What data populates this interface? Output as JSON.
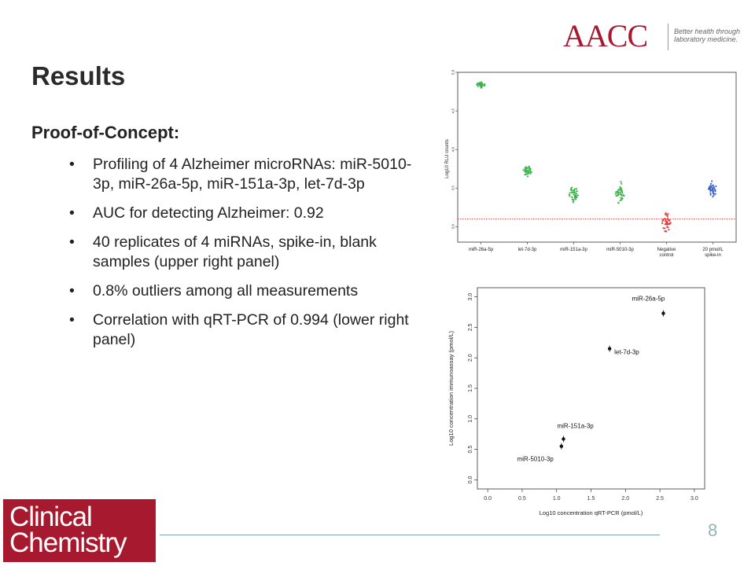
{
  "header": {
    "logo_text": "AACC",
    "tagline_line1": "Better health through",
    "tagline_line2": "laboratory medicine."
  },
  "slide": {
    "title": "Results",
    "subheading": "Proof-of-Concept:",
    "bullet_symbol": "•",
    "bullets": [
      "Profiling of 4 Alzheimer microRNAs: miR-5010-3p, miR-26a-5p, miR-151a-3p, let-7d-3p",
      "AUC for detecting Alzheimer: 0.92",
      "40 replicates of 4 miRNAs, spike-in, blank samples (upper right panel)",
      "0.8% outliers among all measurements",
      "Correlation with qRT-PCR of 0.994 (lower right panel)"
    ]
  },
  "footer": {
    "logo_line1": "Clinical",
    "logo_line2": "Chemistry",
    "page_number": "8"
  },
  "chart_data": [
    {
      "type": "scatter",
      "title": "",
      "xlabel": "",
      "ylabel": "Log10 RLU counts",
      "ylim": [
        2.8,
        5.0
      ],
      "yticks": [
        "3.0",
        "3.5",
        "4.0",
        "4.5",
        "5.0"
      ],
      "grid": false,
      "categories": [
        "miR-26a-5p",
        "let-7d-3p",
        "miR-151a-3p",
        "miR-5010-3p",
        "Negative control",
        "20 pmol/L spike-in"
      ],
      "series": [
        {
          "category": "miR-26a-5p",
          "color": "#3cb44b",
          "center": 4.84,
          "spread": 0.03,
          "points": 40
        },
        {
          "category": "let-7d-3p",
          "color": "#3cb44b",
          "center": 3.72,
          "spread": 0.07,
          "points": 40
        },
        {
          "category": "miR-151a-3p",
          "color": "#3cb44b",
          "center": 3.42,
          "spread": 0.1,
          "points": 40
        },
        {
          "category": "miR-5010-3p",
          "color": "#3cb44b",
          "center": 3.42,
          "spread": 0.12,
          "points": 40
        },
        {
          "category": "Negative control",
          "color": "#e83a3a",
          "center": 3.05,
          "spread": 0.12,
          "points": 40
        },
        {
          "category": "20 pmol/L spike-in",
          "color": "#3a66c8",
          "center": 3.48,
          "spread": 0.09,
          "points": 40
        }
      ],
      "threshold": {
        "y": 3.1,
        "color": "#e83a3a",
        "style": "dotted"
      }
    },
    {
      "type": "scatter",
      "title": "",
      "xlabel": "Log10 concentration qRT-PCR (pmol/L)",
      "ylabel": "Log10 concentration immunoassay (pmol/L)",
      "xlim": [
        -0.15,
        3.15
      ],
      "ylim": [
        -0.15,
        3.15
      ],
      "xticks": [
        "0.0",
        "0.5",
        "1.0",
        "1.5",
        "2.0",
        "2.5",
        "3.0"
      ],
      "yticks": [
        "0.0",
        "0.5",
        "1.0",
        "1.5",
        "2.0",
        "2.5",
        "3.0"
      ],
      "grid": false,
      "points": [
        {
          "label": "miR-26a-5p",
          "x": 2.55,
          "y": 2.73
        },
        {
          "label": "let-7d-3p",
          "x": 1.77,
          "y": 2.15
        },
        {
          "label": "miR-151a-3p",
          "x": 1.1,
          "y": 0.67
        },
        {
          "label": "miR-5010-3p",
          "x": 1.07,
          "y": 0.55
        }
      ]
    }
  ]
}
